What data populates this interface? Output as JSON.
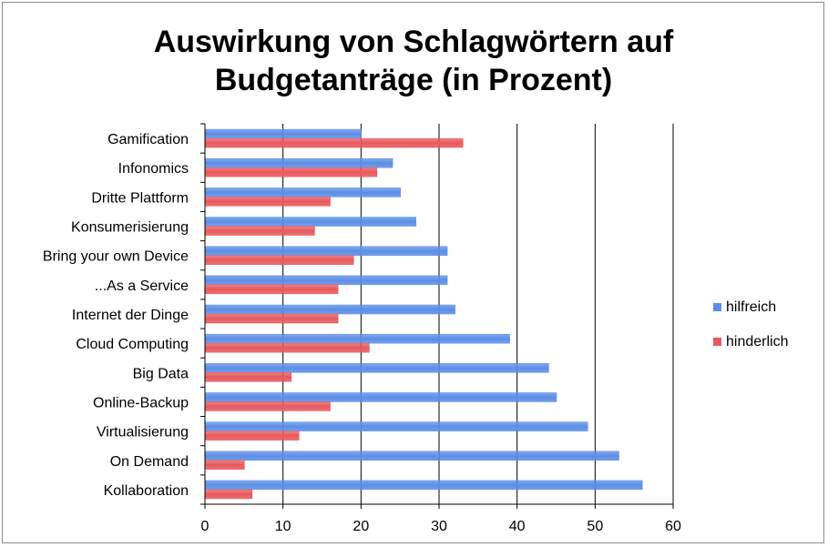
{
  "chart_data": {
    "type": "bar",
    "orientation": "horizontal",
    "title_lines": [
      "Auswirkung von Schlagwörtern auf",
      "Budgetanträge (in Prozent)"
    ],
    "categories": [
      "Gamification",
      "Infonomics",
      "Dritte Plattform",
      "Konsumerisierung",
      "Bring your own Device",
      "...As a Service",
      "Internet der Dinge",
      "Cloud Computing",
      "Big Data",
      "Online-Backup",
      "Virtualisierung",
      "On Demand",
      "Kollaboration"
    ],
    "series": [
      {
        "name": "hilfreich",
        "color": "#5b8ee6",
        "values": [
          20,
          24,
          25,
          27,
          31,
          31,
          32,
          39,
          44,
          45,
          49,
          53,
          56
        ]
      },
      {
        "name": "hinderlich",
        "color": "#e8595d",
        "values": [
          33,
          22,
          16,
          14,
          19,
          17,
          17,
          21,
          11,
          16,
          12,
          5,
          6
        ]
      }
    ],
    "xlim": [
      0,
      60
    ],
    "xticks": [
      "0",
      "10",
      "20",
      "30",
      "40",
      "50",
      "60"
    ],
    "grid": true,
    "legend_position": "right"
  }
}
